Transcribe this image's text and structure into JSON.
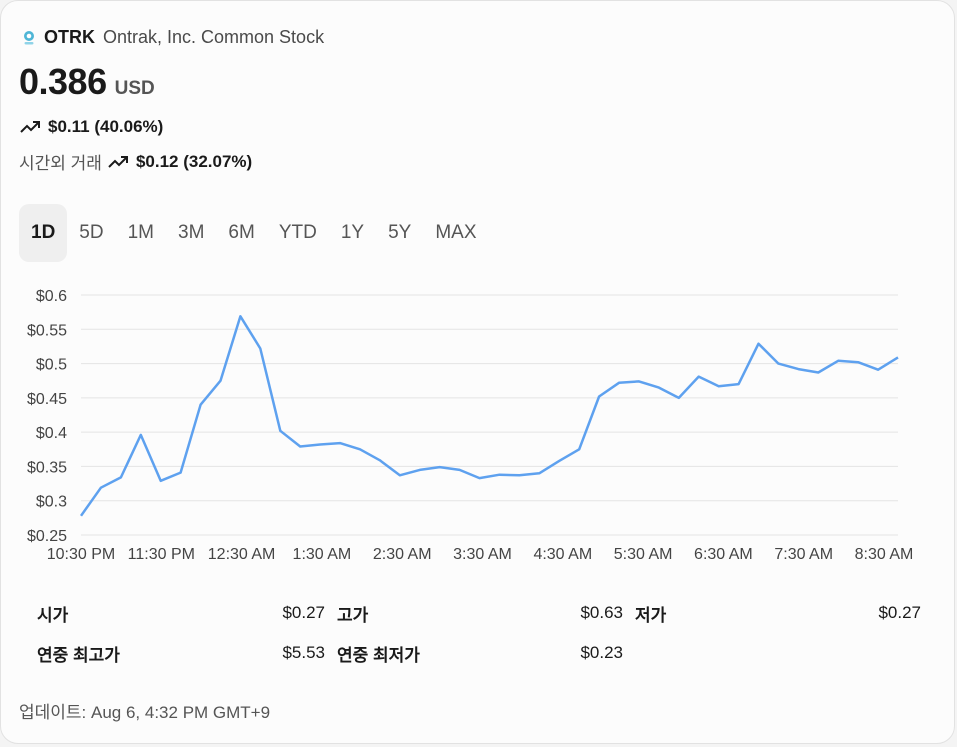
{
  "header": {
    "ticker": "OTRK",
    "company": "Ontrak, Inc. Common Stock",
    "icon": "stock-logo-icon"
  },
  "quote": {
    "price": "0.386",
    "currency": "USD",
    "change": "$0.11 (40.06%)",
    "after_hours_label": "시간외 거래",
    "after_hours_change": "$0.12 (32.07%)",
    "trend_icon": "trending-up-icon"
  },
  "tabs": [
    "1D",
    "5D",
    "1M",
    "3M",
    "6M",
    "YTD",
    "1Y",
    "5Y",
    "MAX"
  ],
  "active_tab": "1D",
  "colors": {
    "line": "#5ea1ef",
    "grid": "#e4e4e4",
    "text": "#1a1a1a"
  },
  "chart_data": {
    "type": "line",
    "x_tick_labels": [
      "10:30 PM",
      "11:30 PM",
      "12:30 AM",
      "1:30 AM",
      "2:30 AM",
      "3:30 AM",
      "4:30 AM",
      "5:30 AM",
      "6:30 AM",
      "7:30 AM",
      "8:30 AM"
    ],
    "y_tick_labels": [
      "$0.6",
      "$0.55",
      "$0.5",
      "$0.45",
      "$0.4",
      "$0.35",
      "$0.3",
      "$0.25"
    ],
    "ylim": [
      0.25,
      0.6
    ],
    "grid": true,
    "series": [
      {
        "values": [
          0.278,
          0.319,
          0.334,
          0.396,
          0.329,
          0.341,
          0.44,
          0.475,
          0.569,
          0.522,
          0.402,
          0.379,
          0.382,
          0.384,
          0.375,
          0.359,
          0.337,
          0.345,
          0.349,
          0.345,
          0.333,
          0.338,
          0.337,
          0.34,
          0.358,
          0.375,
          0.452,
          0.472,
          0.474,
          0.465,
          0.45,
          0.481,
          0.467,
          0.47,
          0.529,
          0.5,
          0.492,
          0.487,
          0.504,
          0.502,
          0.491,
          0.509
        ]
      }
    ]
  },
  "stats": [
    [
      {
        "label": "시가",
        "value": "$0.27"
      },
      {
        "label": "고가",
        "value": "$0.63"
      },
      {
        "label": "저가",
        "value": "$0.27"
      }
    ],
    [
      {
        "label": "연중 최고가",
        "value": "$5.53"
      },
      {
        "label": "연중 최저가",
        "value": "$0.23"
      }
    ]
  ],
  "updated": "업데이트: Aug 6, 4:32 PM GMT+9"
}
